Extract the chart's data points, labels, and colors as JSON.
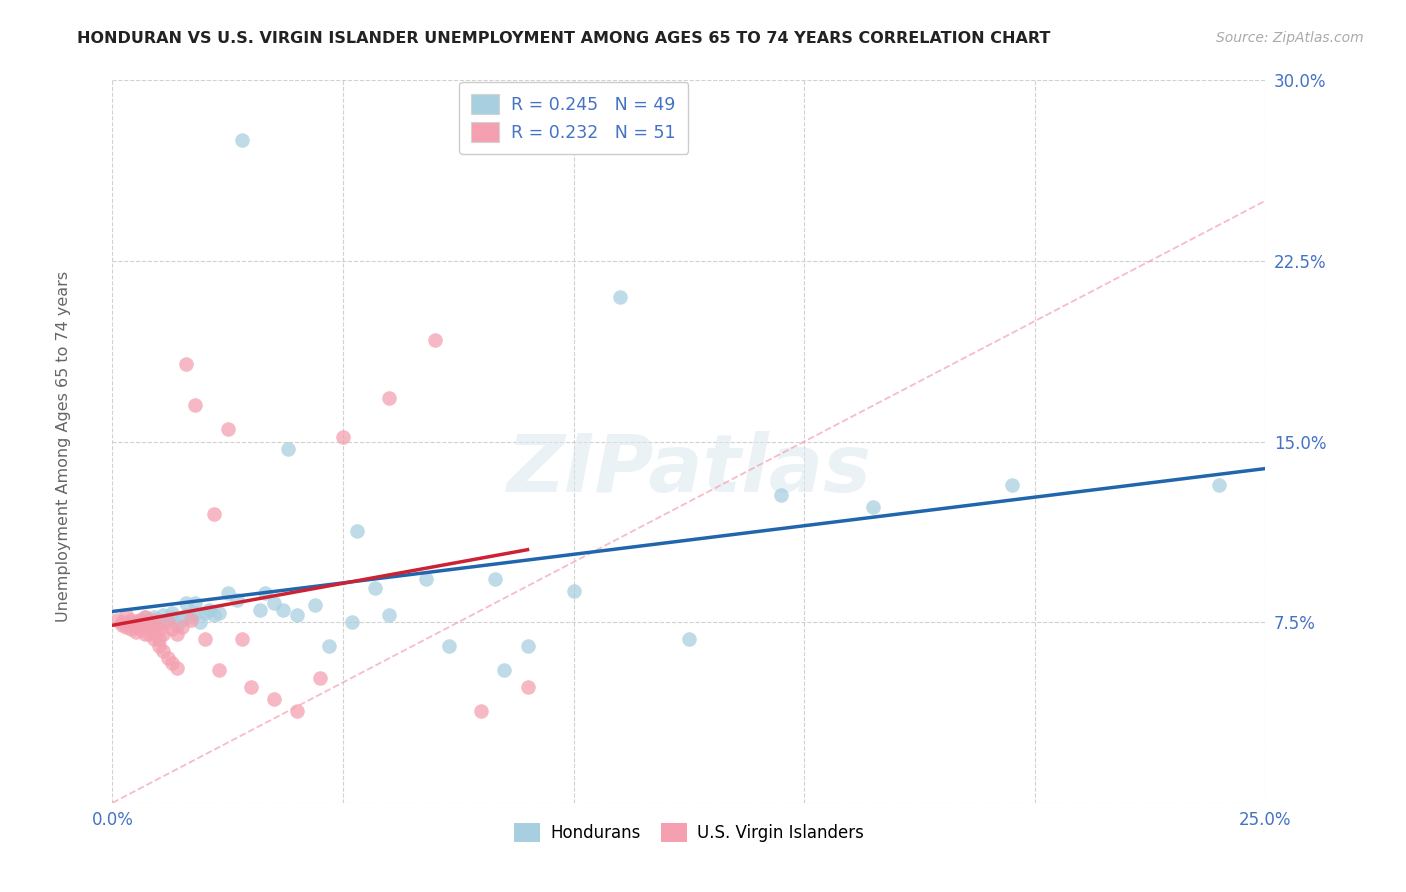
{
  "title": "HONDURAN VS U.S. VIRGIN ISLANDER UNEMPLOYMENT AMONG AGES 65 TO 74 YEARS CORRELATION CHART",
  "source": "Source: ZipAtlas.com",
  "ylabel": "Unemployment Among Ages 65 to 74 years",
  "xlim": [
    0.0,
    0.25
  ],
  "ylim": [
    0.0,
    0.3
  ],
  "xticks": [
    0.0,
    0.05,
    0.1,
    0.15,
    0.2,
    0.25
  ],
  "yticks": [
    0.0,
    0.075,
    0.15,
    0.225,
    0.3
  ],
  "hondurans_color": "#a8cfe0",
  "virgin_color": "#f4a0b0",
  "hondurans_line_color": "#2166ac",
  "virgin_line_color": "#cc2233",
  "R_hondurans": "0.245",
  "N_hondurans": "49",
  "R_virgin": "0.232",
  "N_virgin": "51",
  "background_color": "#ffffff",
  "grid_color": "#cccccc",
  "tick_color": "#4472c4",
  "hondurans_x": [
    0.004,
    0.006,
    0.007,
    0.008,
    0.009,
    0.01,
    0.011,
    0.012,
    0.013,
    0.013,
    0.014,
    0.015,
    0.016,
    0.016,
    0.017,
    0.018,
    0.018,
    0.019,
    0.02,
    0.021,
    0.022,
    0.023,
    0.025,
    0.027,
    0.028,
    0.032,
    0.033,
    0.035,
    0.037,
    0.038,
    0.04,
    0.044,
    0.047,
    0.052,
    0.053,
    0.057,
    0.06,
    0.068,
    0.073,
    0.083,
    0.085,
    0.09,
    0.1,
    0.11,
    0.125,
    0.145,
    0.165,
    0.195,
    0.24
  ],
  "hondurans_y": [
    0.075,
    0.076,
    0.077,
    0.076,
    0.077,
    0.075,
    0.078,
    0.076,
    0.079,
    0.077,
    0.074,
    0.076,
    0.078,
    0.083,
    0.077,
    0.079,
    0.083,
    0.075,
    0.079,
    0.08,
    0.078,
    0.079,
    0.087,
    0.084,
    0.275,
    0.08,
    0.087,
    0.083,
    0.08,
    0.147,
    0.078,
    0.082,
    0.065,
    0.075,
    0.113,
    0.089,
    0.078,
    0.093,
    0.065,
    0.093,
    0.055,
    0.065,
    0.088,
    0.21,
    0.068,
    0.128,
    0.123,
    0.132,
    0.132
  ],
  "virgin_x": [
    0.001,
    0.002,
    0.002,
    0.003,
    0.003,
    0.004,
    0.004,
    0.005,
    0.005,
    0.006,
    0.006,
    0.006,
    0.007,
    0.007,
    0.007,
    0.007,
    0.008,
    0.008,
    0.009,
    0.009,
    0.009,
    0.009,
    0.01,
    0.01,
    0.01,
    0.011,
    0.011,
    0.012,
    0.012,
    0.013,
    0.013,
    0.014,
    0.014,
    0.015,
    0.016,
    0.017,
    0.018,
    0.02,
    0.022,
    0.023,
    0.025,
    0.028,
    0.03,
    0.035,
    0.04,
    0.045,
    0.05,
    0.06,
    0.07,
    0.08,
    0.09
  ],
  "virgin_y": [
    0.076,
    0.074,
    0.075,
    0.073,
    0.078,
    0.072,
    0.076,
    0.071,
    0.074,
    0.072,
    0.073,
    0.076,
    0.07,
    0.073,
    0.075,
    0.077,
    0.07,
    0.073,
    0.068,
    0.071,
    0.074,
    0.076,
    0.065,
    0.068,
    0.072,
    0.063,
    0.07,
    0.06,
    0.075,
    0.058,
    0.072,
    0.056,
    0.07,
    0.073,
    0.182,
    0.076,
    0.165,
    0.068,
    0.12,
    0.055,
    0.155,
    0.068,
    0.048,
    0.043,
    0.038,
    0.052,
    0.152,
    0.168,
    0.192,
    0.038,
    0.048
  ]
}
